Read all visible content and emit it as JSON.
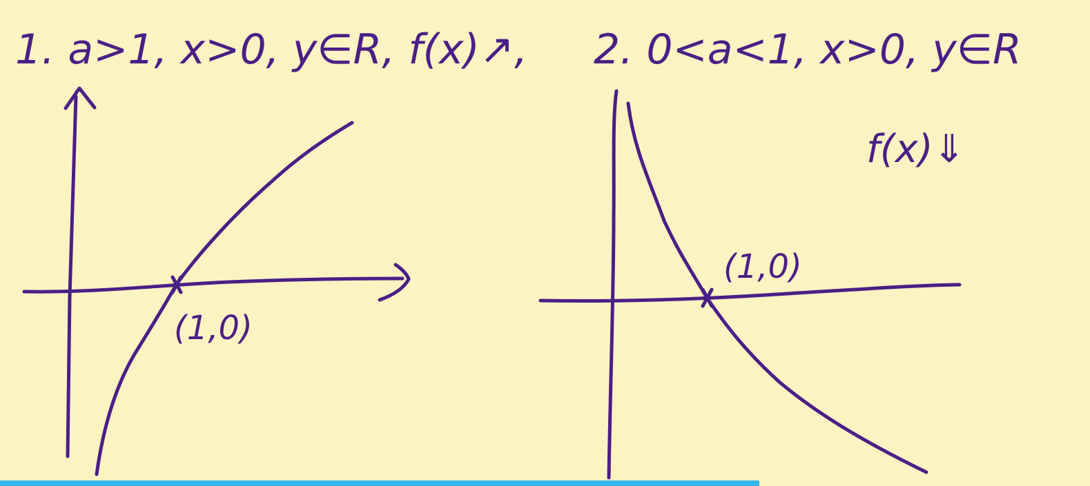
{
  "colors": {
    "background": "#fcf3c3",
    "ink": "#4a1f86",
    "progress_bar": "#35b7ee"
  },
  "header": {
    "case1": "1. a>1, x>0, y∈R, f(x)↗,",
    "case2": "2. 0<a<1, x>0, y∈R"
  },
  "graph1": {
    "point_label": "(1,0)"
  },
  "graph2": {
    "point_label": "(1,0)",
    "monotonic_label": "f(x)⇓"
  }
}
